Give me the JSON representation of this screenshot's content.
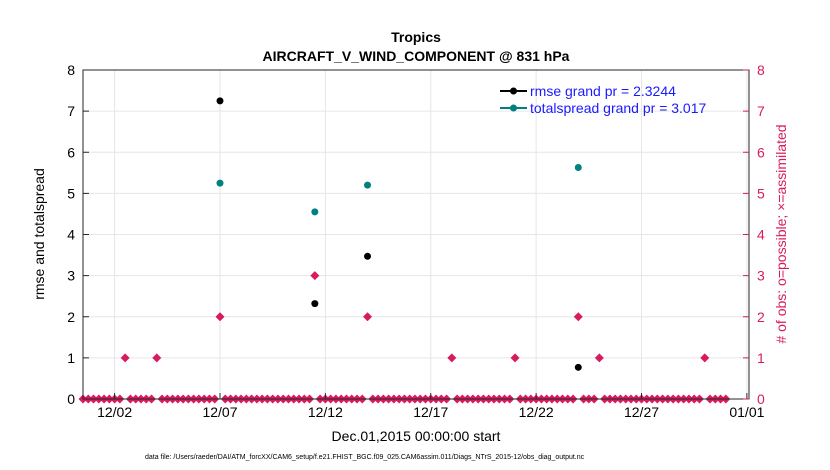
{
  "chart_data": {
    "type": "scatter",
    "title": "Tropics",
    "subtitle": "AIRCRAFT_V_WIND_COMPONENT @ 831 hPa",
    "xlabel": "Dec.01,2015 00:00:00 start",
    "ylabel_left": "rmse and totalspread",
    "ylabel_right": "# of obs: o=possible; ×=assimilated",
    "xlim": [
      0.5,
      31
    ],
    "ylim_left": [
      0,
      8
    ],
    "ylim_right": [
      0,
      8
    ],
    "x_ticks": [
      {
        "value": 2,
        "label": "12/02"
      },
      {
        "value": 7,
        "label": "12/07"
      },
      {
        "value": 12,
        "label": "12/12"
      },
      {
        "value": 17,
        "label": "12/17"
      },
      {
        "value": 22,
        "label": "12/22"
      },
      {
        "value": 27,
        "label": "12/27"
      },
      {
        "value": 32,
        "label": "01/01"
      }
    ],
    "y_ticks": [
      "0",
      "1",
      "2",
      "3",
      "4",
      "5",
      "6",
      "7",
      "8"
    ],
    "grid": true,
    "legend": [
      {
        "label": "rmse grand pr = 2.3244",
        "color": "#000000"
      },
      {
        "label": "totalspread grand pr = 3.017",
        "color": "#008080"
      }
    ],
    "legend_position": "top-right",
    "series": [
      {
        "name": "rmse",
        "color": "#000000",
        "points": [
          [
            7.0,
            7.25
          ],
          [
            11.5,
            2.32
          ],
          [
            14.0,
            3.47
          ],
          [
            24.0,
            0.77
          ]
        ]
      },
      {
        "name": "totalspread",
        "color": "#008080",
        "points": [
          [
            7.0,
            5.25
          ],
          [
            11.5,
            4.55
          ],
          [
            14.0,
            5.2
          ],
          [
            24.0,
            5.63
          ]
        ]
      },
      {
        "name": "obs_count",
        "color": "#d81b60",
        "interval": 0.25,
        "start": 0.5,
        "end": 31.0,
        "baseline": 0,
        "points": [
          [
            2.5,
            1
          ],
          [
            4.0,
            1
          ],
          [
            7.0,
            2
          ],
          [
            11.5,
            3
          ],
          [
            14.0,
            2
          ],
          [
            18.0,
            1
          ],
          [
            21.0,
            1
          ],
          [
            24.0,
            2
          ],
          [
            25.0,
            1
          ],
          [
            30.0,
            1
          ]
        ]
      }
    ],
    "footnote": "data file: /Users/raeder/DAI/ATM_forcXX/CAM6_setup/f.e21.FHIST_BGC.f09_025.CAM6assim.011/Diags_NTrS_2015-12/obs_diag_output.nc"
  }
}
